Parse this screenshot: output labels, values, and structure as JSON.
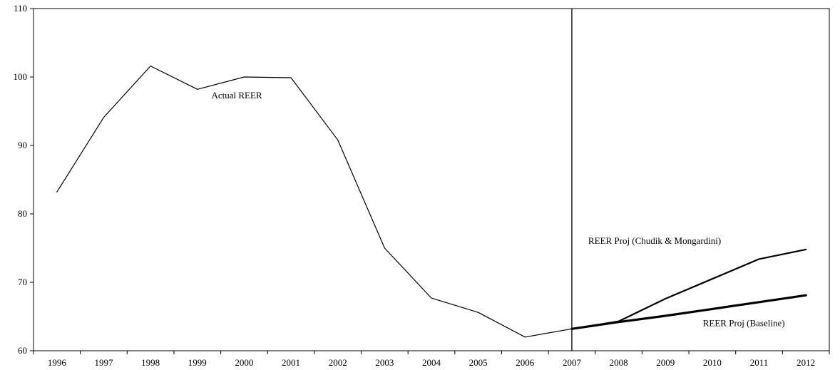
{
  "chart_data": {
    "type": "line",
    "title": "",
    "xlabel": "",
    "ylabel": "",
    "categories": [
      "1996",
      "1997",
      "1998",
      "1999",
      "2000",
      "2001",
      "2002",
      "2003",
      "2004",
      "2005",
      "2006",
      "2007",
      "2008",
      "2009",
      "2010",
      "2011",
      "2012"
    ],
    "ylim": [
      60,
      110
    ],
    "yticks": [
      60,
      70,
      80,
      90,
      100,
      110
    ],
    "grid": false,
    "legend": "none",
    "divider_at": "2007",
    "series": [
      {
        "name": "Actual REER",
        "values": [
          83.2,
          94.1,
          101.6,
          98.2,
          100.0,
          99.9,
          90.8,
          75.0,
          67.7,
          65.6,
          62.0,
          63.2,
          null,
          null,
          null,
          null,
          null
        ],
        "stroke_width": 1.2,
        "color": "#000000"
      },
      {
        "name": "REER Proj (Chudik & Mongardini)",
        "values": [
          null,
          null,
          null,
          null,
          null,
          null,
          null,
          null,
          null,
          null,
          null,
          63.2,
          64.3,
          67.6,
          70.5,
          73.4,
          74.8
        ],
        "stroke_width": 2.2,
        "color": "#000000"
      },
      {
        "name": "REER Proj (Baseline)",
        "values": [
          null,
          null,
          null,
          null,
          null,
          null,
          null,
          null,
          null,
          null,
          null,
          63.2,
          64.2,
          65.1,
          66.1,
          67.1,
          68.1
        ],
        "stroke_width": 3.2,
        "color": "#000000"
      }
    ],
    "annotations": [
      {
        "text": "Actual REER",
        "x": "1999.3",
        "y": 96.9
      },
      {
        "text": "REER Proj (Chudik & Mongardini)",
        "x": "2007.35",
        "y": 75.6
      },
      {
        "text": "REER Proj (Baseline)",
        "x": "2009.8",
        "y": 63.6
      }
    ]
  }
}
